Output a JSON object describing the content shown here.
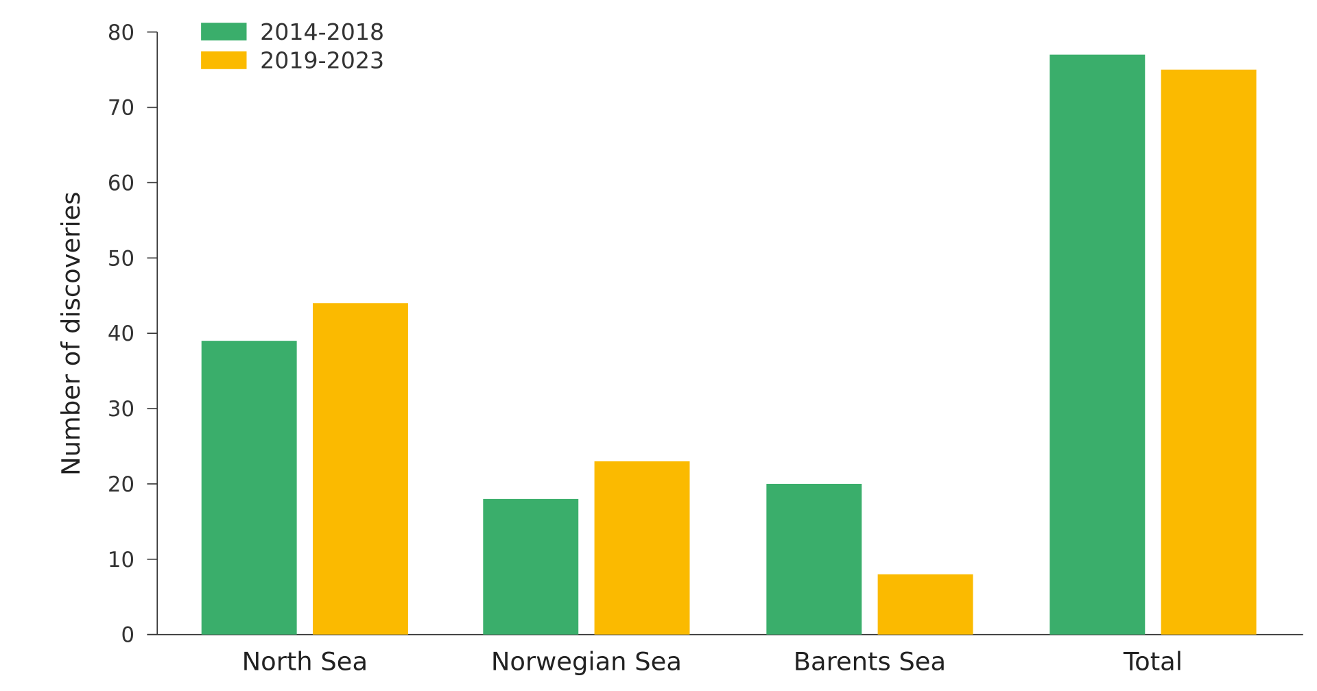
{
  "chart_data": {
    "type": "bar",
    "categories": [
      "North Sea",
      "Norwegian Sea",
      "Barents Sea",
      "Total"
    ],
    "series": [
      {
        "name": "2014-2018",
        "color": "#3aae6b",
        "values": [
          39,
          18,
          20,
          77
        ]
      },
      {
        "name": "2019-2023",
        "color": "#fbba00",
        "values": [
          44,
          23,
          8,
          75
        ]
      }
    ],
    "ylabel": "Number of discoveries",
    "xlabel": "",
    "ylim": [
      0,
      80
    ],
    "yticks": [
      "0",
      "10",
      "20",
      "30",
      "40",
      "50",
      "60",
      "70",
      "80"
    ],
    "grid": false,
    "legend_position": "top-left"
  }
}
